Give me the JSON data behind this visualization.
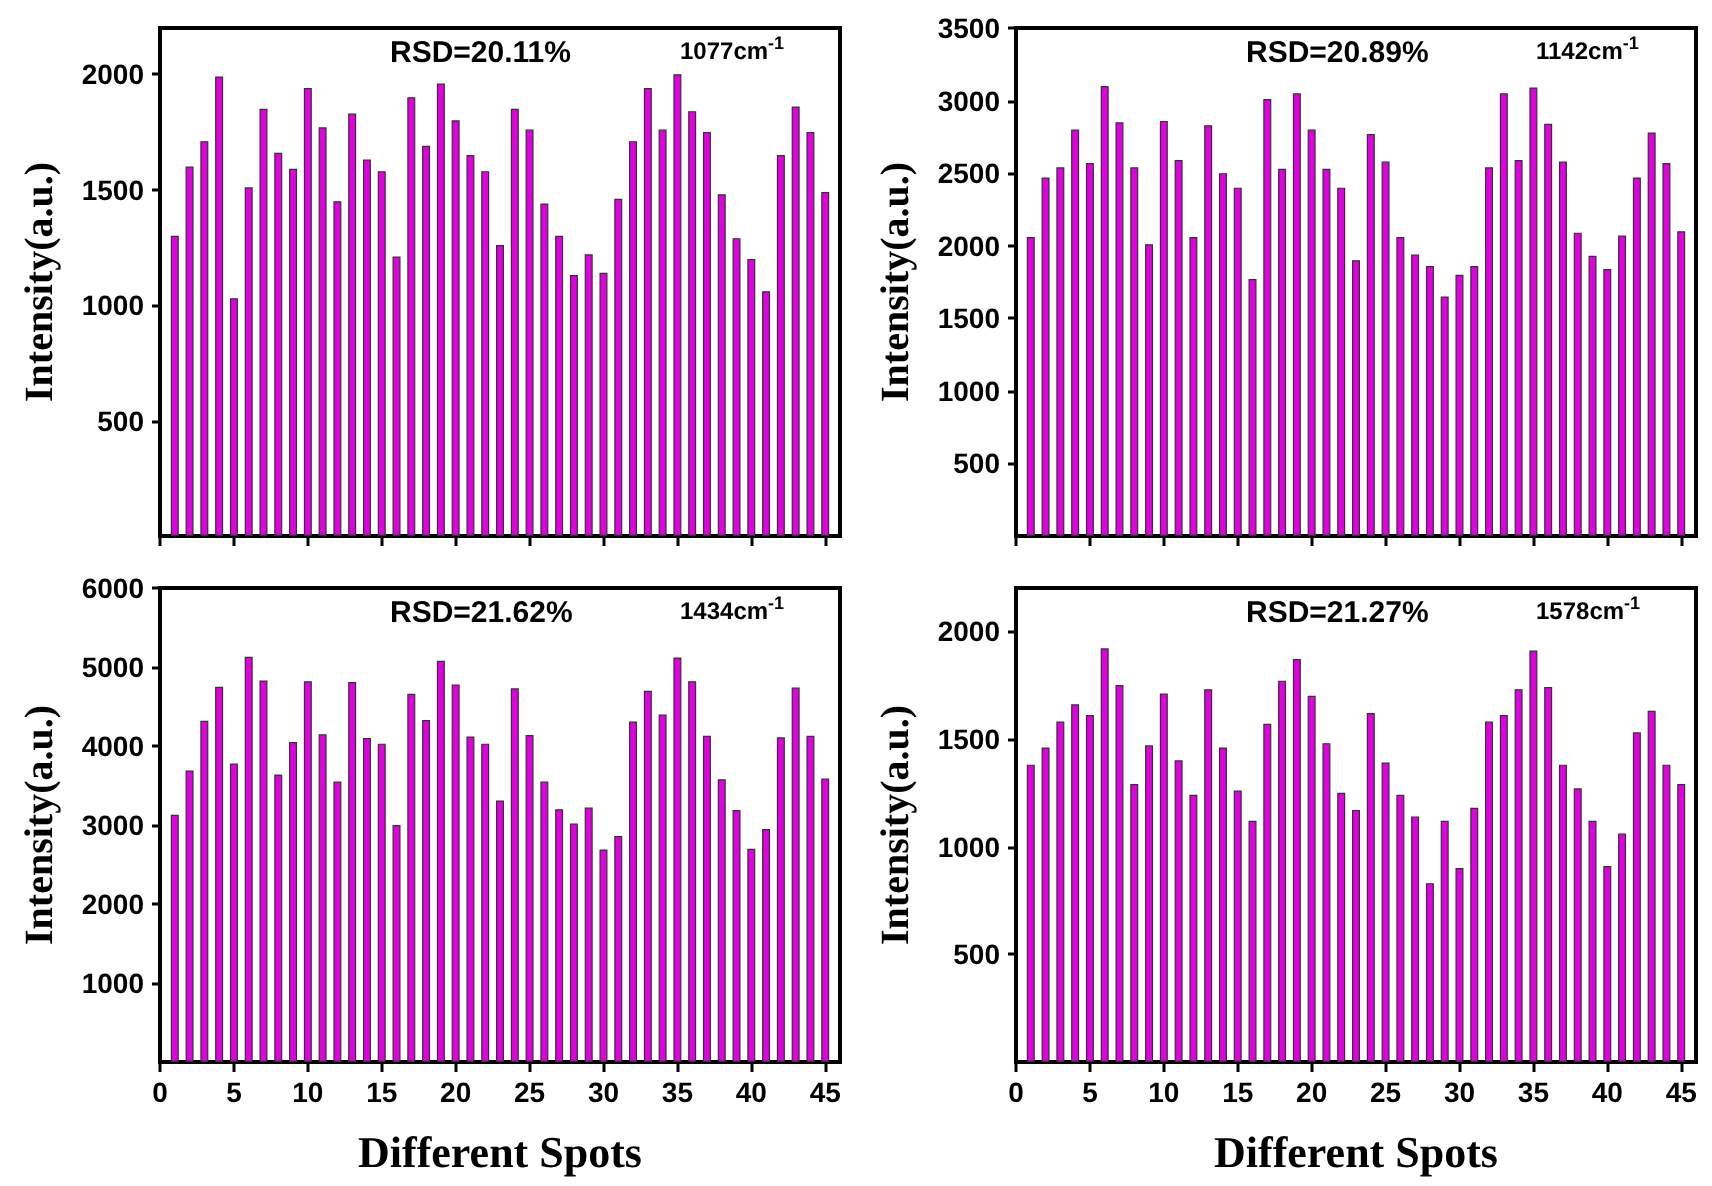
{
  "chart_data": [
    {
      "type": "bar",
      "ylabel": "Intensity(a.u.)",
      "annotations": [
        "RSD=20.11%",
        "1077cm$^{-1}$"
      ],
      "x": [
        1,
        2,
        3,
        4,
        5,
        6,
        7,
        8,
        9,
        10,
        11,
        12,
        13,
        14,
        15,
        16,
        17,
        18,
        19,
        20,
        21,
        22,
        23,
        24,
        25,
        26,
        27,
        28,
        29,
        30,
        31,
        32,
        33,
        34,
        35,
        36,
        37,
        38,
        39,
        40,
        41,
        42,
        43,
        44,
        45
      ],
      "color": "#e000e0",
      "values": [
        1300,
        1600,
        1710,
        1990,
        1030,
        1510,
        1850,
        1660,
        1590,
        1940,
        1770,
        1450,
        1830,
        1630,
        1580,
        1210,
        1900,
        1690,
        1960,
        1800,
        1650,
        1580,
        1260,
        1850,
        1760,
        1440,
        1300,
        1130,
        1220,
        1140,
        1460,
        1710,
        1940,
        1760,
        2000,
        1840,
        1750,
        1480,
        1290,
        1200,
        1060,
        1650,
        1860,
        1750,
        1490
      ],
      "xlim": [
        0,
        46
      ],
      "xticks": [
        0,
        5,
        10,
        15,
        20,
        25,
        30,
        35,
        40,
        45
      ],
      "ylim": [
        0,
        2200
      ],
      "yticks": [
        500,
        1000,
        1500,
        2000
      ],
      "tick_labels": "y"
    },
    {
      "type": "bar",
      "ylabel": "Intensity(a.u.)",
      "annotations": [
        "RSD=20.89%",
        "1142cm$^{-1}$"
      ],
      "x": [
        1,
        2,
        3,
        4,
        5,
        6,
        7,
        8,
        9,
        10,
        11,
        12,
        13,
        14,
        15,
        16,
        17,
        18,
        19,
        20,
        21,
        22,
        23,
        24,
        25,
        26,
        27,
        28,
        29,
        30,
        31,
        32,
        33,
        34,
        35,
        36,
        37,
        38,
        39,
        40,
        41,
        42,
        43,
        44,
        45
      ],
      "color": "#e000e0",
      "values": [
        2060,
        2470,
        2540,
        2800,
        2570,
        3100,
        2850,
        2540,
        2010,
        2860,
        2590,
        2060,
        2830,
        2500,
        2400,
        1770,
        3010,
        2530,
        3050,
        2800,
        2530,
        2400,
        1900,
        2770,
        2580,
        2060,
        1940,
        1860,
        1650,
        1800,
        1860,
        2540,
        3050,
        2590,
        3090,
        2840,
        2580,
        2090,
        1930,
        1840,
        2070,
        2470,
        2780,
        2570,
        2100
      ],
      "xlim": [
        0,
        46
      ],
      "xticks": [
        0,
        5,
        10,
        15,
        20,
        25,
        30,
        35,
        40,
        45
      ],
      "ylim": [
        0,
        3500
      ],
      "yticks": [
        500,
        1000,
        1500,
        2000,
        2500,
        3000,
        3500
      ],
      "tick_labels": "y"
    },
    {
      "type": "bar",
      "xlabel": "Different Spots",
      "ylabel": "Intensity(a.u.)",
      "annotations": [
        "RSD=21.62%",
        "1434cm$^{-1}$"
      ],
      "x": [
        1,
        2,
        3,
        4,
        5,
        6,
        7,
        8,
        9,
        10,
        11,
        12,
        13,
        14,
        15,
        16,
        17,
        18,
        19,
        20,
        21,
        22,
        23,
        24,
        25,
        26,
        27,
        28,
        29,
        30,
        31,
        32,
        33,
        34,
        35,
        36,
        37,
        38,
        39,
        40,
        41,
        42,
        43,
        44,
        45
      ],
      "color": "#e000e0",
      "values": [
        3130,
        3690,
        4320,
        4750,
        3780,
        5130,
        4830,
        3640,
        4050,
        4820,
        4150,
        3550,
        4810,
        4100,
        4030,
        3000,
        4660,
        4330,
        5080,
        4780,
        4120,
        4030,
        3310,
        4730,
        4140,
        3550,
        3200,
        3020,
        3220,
        2690,
        2860,
        4310,
        4700,
        4400,
        5120,
        4820,
        4130,
        3580,
        3190,
        2700,
        2950,
        4110,
        4740,
        4130,
        3590
      ],
      "xlim": [
        0,
        46
      ],
      "xticks": [
        0,
        5,
        10,
        15,
        20,
        25,
        30,
        35,
        40,
        45
      ],
      "ylim": [
        0,
        6000
      ],
      "yticks": [
        1000,
        2000,
        3000,
        4000,
        5000,
        6000
      ]
    },
    {
      "type": "bar",
      "xlabel": "Different Spots",
      "ylabel": "Intensity(a.u.)",
      "annotations": [
        "RSD=21.27%",
        "1578cm$^{-1}$"
      ],
      "x": [
        1,
        2,
        3,
        4,
        5,
        6,
        7,
        8,
        9,
        10,
        11,
        12,
        13,
        14,
        15,
        16,
        17,
        18,
        19,
        20,
        21,
        22,
        23,
        24,
        25,
        26,
        27,
        28,
        29,
        30,
        31,
        32,
        33,
        34,
        35,
        36,
        37,
        38,
        39,
        40,
        41,
        42,
        43,
        44,
        45
      ],
      "color": "#e000e0",
      "values": [
        1380,
        1460,
        1580,
        1660,
        1610,
        1920,
        1750,
        1290,
        1470,
        1710,
        1400,
        1240,
        1730,
        1460,
        1260,
        1120,
        1570,
        1770,
        1870,
        1700,
        1480,
        1250,
        1170,
        1620,
        1390,
        1240,
        1140,
        830,
        1120,
        900,
        1180,
        1580,
        1610,
        1730,
        1910,
        1740,
        1380,
        1270,
        1120,
        910,
        1060,
        1530,
        1630,
        1380,
        1290
      ],
      "xlim": [
        0,
        46
      ],
      "xticks": [
        0,
        5,
        10,
        15,
        20,
        25,
        30,
        35,
        40,
        45
      ],
      "ylim": [
        0,
        2200
      ],
      "yticks": [
        500,
        1000,
        1500,
        2000
      ]
    }
  ]
}
